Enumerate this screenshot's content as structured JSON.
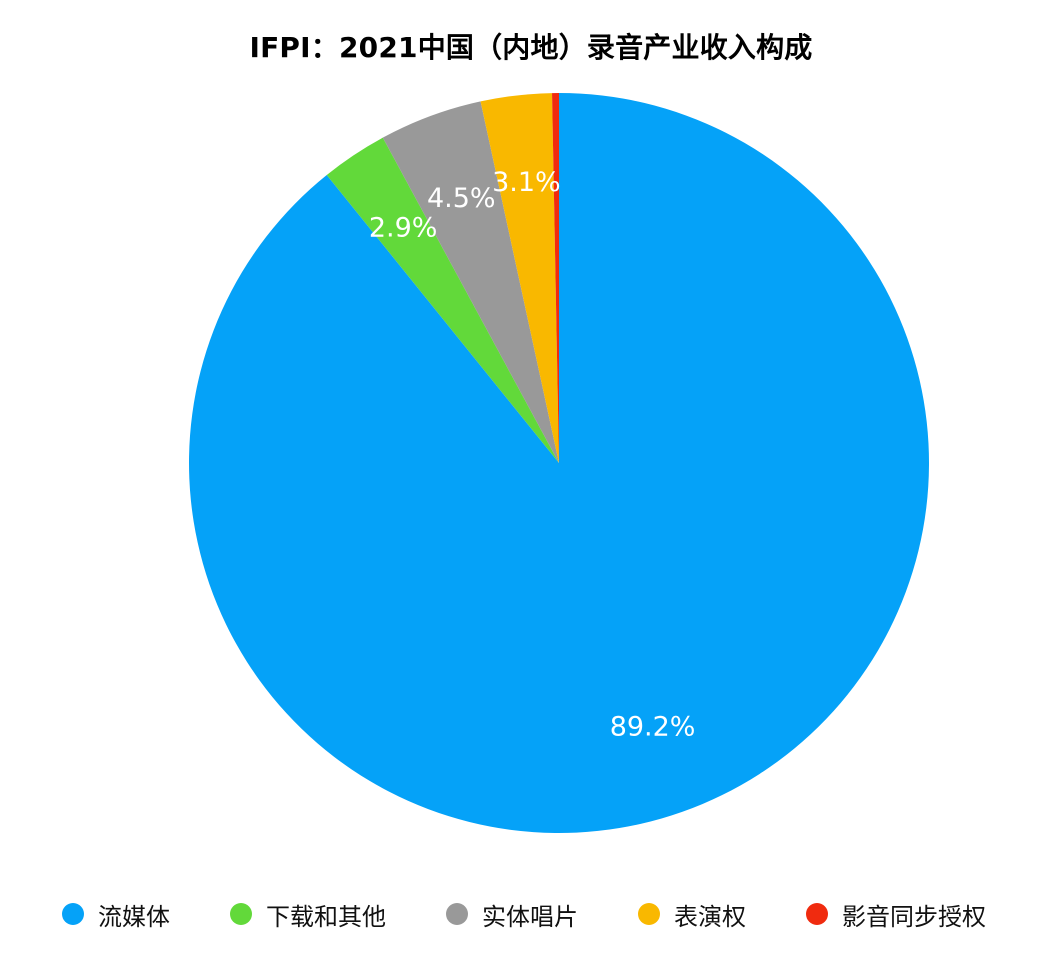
{
  "chart_data": {
    "type": "pie",
    "title": "IFPI：2021中国（内地）录音产业收入构成",
    "slices": [
      {
        "label": "流媒体",
        "value": 89.2,
        "display": "89.2%",
        "color": "#05A2F8"
      },
      {
        "label": "下载和其他",
        "value": 2.9,
        "display": "2.9%",
        "color": "#62D93A"
      },
      {
        "label": "实体唱片",
        "value": 4.5,
        "display": "4.5%",
        "color": "#999999"
      },
      {
        "label": "表演权",
        "value": 3.1,
        "display": "3.1%",
        "color": "#F9B800"
      },
      {
        "label": "影音同步授权",
        "value": 0.3,
        "display": "",
        "color": "#F02B0F"
      }
    ],
    "legend_position": "bottom",
    "start_angle": "top",
    "direction": "clockwise"
  }
}
